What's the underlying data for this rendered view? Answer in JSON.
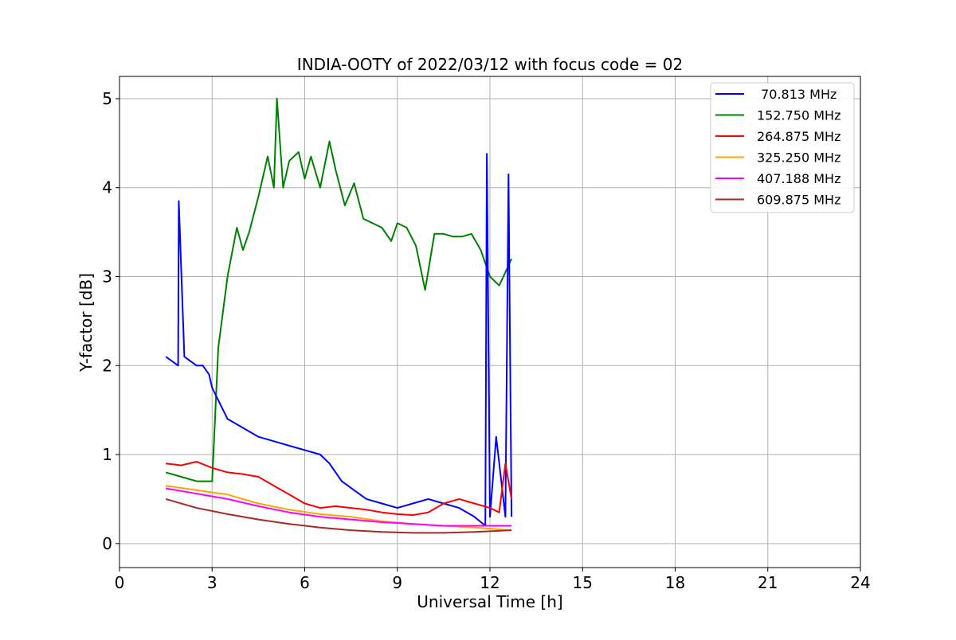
{
  "chart_data": {
    "type": "line",
    "title": "INDIA-OOTY of 2022/03/12 with focus code = 02",
    "xlabel": "Universal Time [h]",
    "ylabel": "Y-factor [dB]",
    "xlim": [
      0,
      24
    ],
    "ylim": [
      -0.27,
      5.25
    ],
    "xticks": [
      0,
      3,
      6,
      9,
      12,
      15,
      18,
      21,
      24
    ],
    "yticks": [
      0,
      1,
      2,
      3,
      4,
      5
    ],
    "xtick_labels": [
      "0",
      "3",
      "6",
      "9",
      "12",
      "15",
      "18",
      "21",
      "24"
    ],
    "ytick_labels": [
      "0",
      "1",
      "2",
      "3",
      "4",
      "5"
    ],
    "grid": true,
    "legend_position": "top-right",
    "series": [
      {
        "name": " 70.813 MHz",
        "color": "#0000ff",
        "x": [
          1.5,
          1.7,
          1.9,
          1.92,
          2.1,
          2.3,
          2.5,
          2.7,
          2.9,
          3.0,
          3.5,
          4.5,
          5.5,
          6.5,
          6.8,
          7.0,
          7.2,
          7.6,
          8.0,
          8.5,
          9.0,
          9.5,
          10.0,
          10.5,
          11.0,
          11.5,
          11.85,
          11.9,
          12.0,
          12.2,
          12.5,
          12.6,
          12.7
        ],
        "y": [
          2.1,
          2.05,
          2.0,
          3.85,
          2.1,
          2.05,
          2.0,
          2.0,
          1.9,
          1.75,
          1.4,
          1.2,
          1.1,
          1.0,
          0.9,
          0.8,
          0.7,
          0.6,
          0.5,
          0.45,
          0.4,
          0.45,
          0.5,
          0.45,
          0.4,
          0.3,
          0.2,
          4.38,
          0.3,
          1.2,
          0.3,
          4.15,
          0.3
        ]
      },
      {
        "name": "152.750 MHz",
        "color": "#008000",
        "x": [
          1.5,
          2.0,
          2.5,
          3.0,
          3.2,
          3.5,
          3.8,
          4.0,
          4.2,
          4.5,
          4.8,
          5.0,
          5.1,
          5.3,
          5.5,
          5.8,
          6.0,
          6.2,
          6.5,
          6.8,
          7.0,
          7.3,
          7.6,
          7.9,
          8.2,
          8.5,
          8.8,
          9.0,
          9.3,
          9.6,
          9.9,
          10.2,
          10.5,
          10.8,
          11.1,
          11.4,
          11.7,
          12.0,
          12.3,
          12.5,
          12.7
        ],
        "y": [
          0.8,
          0.75,
          0.7,
          0.7,
          2.2,
          3.0,
          3.55,
          3.3,
          3.5,
          3.9,
          4.35,
          4.0,
          5.0,
          4.0,
          4.3,
          4.4,
          4.1,
          4.35,
          4.0,
          4.52,
          4.2,
          3.8,
          4.05,
          3.65,
          3.6,
          3.55,
          3.4,
          3.6,
          3.55,
          3.35,
          2.85,
          3.48,
          3.48,
          3.45,
          3.45,
          3.48,
          3.3,
          3.0,
          2.9,
          3.05,
          3.2
        ]
      },
      {
        "name": "264.875 MHz",
        "color": "#ff0000",
        "x": [
          1.5,
          2.0,
          2.5,
          3.0,
          3.5,
          4.0,
          4.5,
          5.0,
          5.5,
          6.0,
          6.5,
          7.0,
          7.5,
          8.0,
          8.5,
          9.0,
          9.5,
          10.0,
          10.5,
          11.0,
          11.5,
          12.0,
          12.3,
          12.5,
          12.7
        ],
        "y": [
          0.9,
          0.88,
          0.92,
          0.85,
          0.8,
          0.78,
          0.75,
          0.65,
          0.55,
          0.45,
          0.4,
          0.42,
          0.4,
          0.38,
          0.35,
          0.33,
          0.32,
          0.35,
          0.45,
          0.5,
          0.45,
          0.4,
          0.35,
          0.9,
          0.5
        ]
      },
      {
        "name": "325.250 MHz",
        "color": "#ffa500",
        "x": [
          1.5,
          2.5,
          3.5,
          4.5,
          5.5,
          6.5,
          7.5,
          8.5,
          9.5,
          10.5,
          11.5,
          12.7
        ],
        "y": [
          0.65,
          0.6,
          0.55,
          0.45,
          0.38,
          0.33,
          0.3,
          0.25,
          0.22,
          0.2,
          0.18,
          0.15
        ]
      },
      {
        "name": "407.188 MHz",
        "color": "#ff00ff",
        "x": [
          1.5,
          2.5,
          3.5,
          4.5,
          5.5,
          6.5,
          7.5,
          8.5,
          9.5,
          10.5,
          11.5,
          12.7
        ],
        "y": [
          0.62,
          0.56,
          0.5,
          0.42,
          0.35,
          0.3,
          0.27,
          0.24,
          0.22,
          0.2,
          0.2,
          0.2
        ]
      },
      {
        "name": "609.875 MHz",
        "color": "#a52a2a",
        "x": [
          1.5,
          2.5,
          3.5,
          4.5,
          5.5,
          6.5,
          7.5,
          8.5,
          9.5,
          10.5,
          11.5,
          12.7
        ],
        "y": [
          0.5,
          0.4,
          0.33,
          0.27,
          0.22,
          0.18,
          0.15,
          0.13,
          0.12,
          0.12,
          0.13,
          0.15
        ]
      }
    ]
  }
}
